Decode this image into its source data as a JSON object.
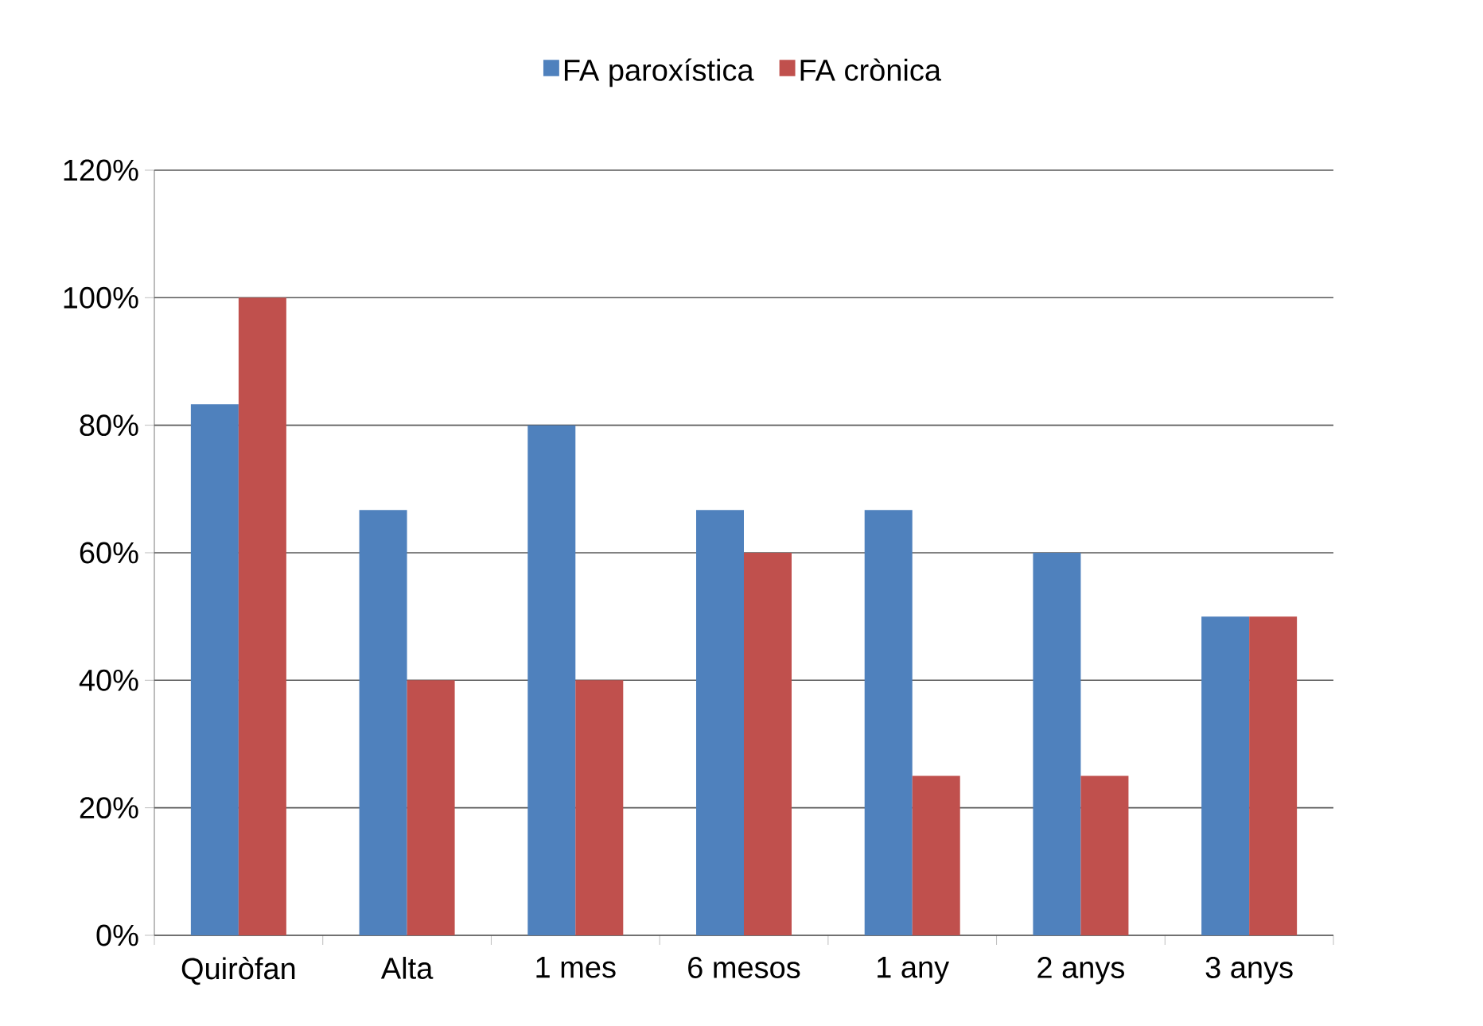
{
  "chart_data": {
    "type": "bar",
    "categories": [
      "Quiròfan",
      "Alta",
      "1 mes",
      "6 mesos",
      "1 any",
      "2 anys",
      "3 anys"
    ],
    "series": [
      {
        "name": "FA paroxística",
        "color": "#4f81bd",
        "values": [
          83.3,
          66.7,
          80,
          66.7,
          66.7,
          60,
          50
        ]
      },
      {
        "name": "FA crònica",
        "color": "#c0504d",
        "values": [
          100,
          40,
          40,
          60,
          25,
          25,
          50
        ]
      }
    ],
    "ylim": [
      0,
      120
    ],
    "yticks": [
      {
        "value": 0,
        "label": "0%"
      },
      {
        "value": 20,
        "label": "20%"
      },
      {
        "value": 40,
        "label": "40%"
      },
      {
        "value": 60,
        "label": "60%"
      },
      {
        "value": 80,
        "label": "80%"
      },
      {
        "value": 100,
        "label": "100%"
      },
      {
        "value": 120,
        "label": "120%"
      }
    ],
    "grid": "y",
    "legend": "top"
  }
}
